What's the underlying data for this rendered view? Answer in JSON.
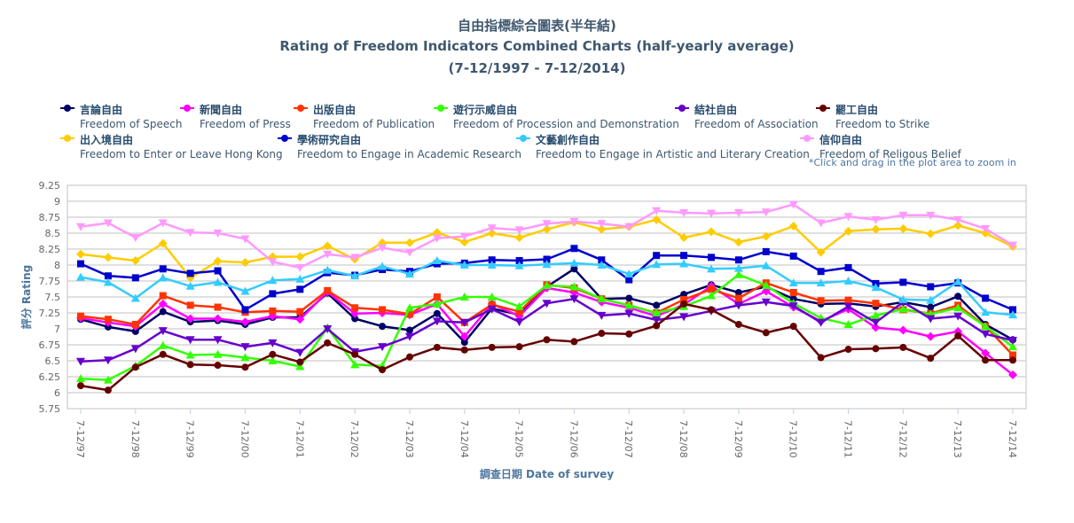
{
  "title_zh": "自由指標綜合圖表(半年結)",
  "title_en": "Rating of Freedom Indicators Combined Charts (half-yearly average)",
  "title_range": "(7-12/1997 - 7-12/2014)",
  "zoom_hint": "*Click and drag in the plot area to zoom in",
  "chart_data": {
    "type": "line",
    "title": "Rating of Freedom Indicators Combined Charts (half-yearly average)",
    "xlabel": "調查日期 Date of survey",
    "ylabel": "評分 Rating",
    "ylim": [
      5.75,
      9.25
    ],
    "yticks": [
      5.75,
      6,
      6.25,
      6.5,
      6.75,
      7,
      7.25,
      7.5,
      7.75,
      8,
      8.25,
      8.5,
      8.75,
      9,
      9.25
    ],
    "ytick_labels": [
      "5.75",
      "6",
      "6.25",
      "6.5",
      "6.75",
      "7",
      "7.25",
      "7.5",
      "7.75",
      "8",
      "8.25",
      "8.5",
      "8.75",
      "9",
      "9.25"
    ],
    "x_ticks": [
      "7-12/97",
      "7-12/98",
      "7-12/99",
      "7-12/00",
      "7-12/01",
      "7-12/02",
      "7-12/03",
      "7-12/04",
      "7-12/05",
      "7-12/06",
      "7-12/07",
      "7-12/08",
      "7-12/09",
      "7-12/10",
      "7-12/11",
      "7-12/12",
      "7-12/13",
      "7-12/14"
    ],
    "grid": true,
    "legend_position": "top",
    "series": [
      {
        "name_zh": "言論自由",
        "name": "Freedom of Speech",
        "color": "#000066",
        "marker": "circle",
        "values": [
          7.15,
          7.03,
          6.96,
          7.27,
          7.11,
          7.13,
          7.07,
          7.18,
          7.18,
          7.56,
          7.16,
          7.04,
          6.98,
          7.24,
          6.79,
          7.32,
          7.22,
          7.66,
          7.94,
          7.47,
          7.48,
          7.37,
          7.54,
          7.69,
          7.57,
          7.66,
          7.47,
          7.39,
          7.4,
          7.35,
          7.42,
          7.34,
          7.51,
          7.07,
          6.83
        ]
      },
      {
        "name_zh": "新聞自由",
        "name": "Freedom of Press",
        "color": "#ff00ff",
        "marker": "diamond",
        "values": [
          7.17,
          7.1,
          7.04,
          7.39,
          7.16,
          7.16,
          7.11,
          7.2,
          7.15,
          7.58,
          7.24,
          7.25,
          7.22,
          7.39,
          6.88,
          7.39,
          7.2,
          7.64,
          7.57,
          7.42,
          7.33,
          7.2,
          7.38,
          7.67,
          7.39,
          7.59,
          7.34,
          7.12,
          7.31,
          7.02,
          6.98,
          6.88,
          6.96,
          6.62,
          6.28
        ]
      },
      {
        "name_zh": "出版自由",
        "name": "Freedom of Publication",
        "color": "#ff3300",
        "marker": "square",
        "values": [
          7.2,
          7.15,
          7.07,
          7.52,
          7.37,
          7.34,
          7.26,
          7.28,
          7.27,
          7.6,
          7.33,
          7.3,
          7.23,
          7.5,
          7.1,
          7.38,
          7.27,
          7.69,
          7.64,
          7.47,
          7.37,
          7.25,
          7.46,
          7.62,
          7.48,
          7.72,
          7.57,
          7.44,
          7.45,
          7.4,
          7.3,
          7.24,
          7.37,
          7.04,
          6.59
        ]
      },
      {
        "name_zh": "遊行示威自由",
        "name": "Freedom of Procession and Demonstration",
        "color": "#33ff00",
        "marker": "triangle",
        "values": [
          6.22,
          6.2,
          6.42,
          6.74,
          6.59,
          6.6,
          6.55,
          6.5,
          6.41,
          7.02,
          6.44,
          6.42,
          7.33,
          7.39,
          7.5,
          7.5,
          7.35,
          7.68,
          7.66,
          7.47,
          7.37,
          7.25,
          7.35,
          7.52,
          7.85,
          7.68,
          7.4,
          7.17,
          7.07,
          7.21,
          7.31,
          7.23,
          7.33,
          7.04,
          6.72
        ]
      },
      {
        "name_zh": "結社自由",
        "name": "Freedom of Association",
        "color": "#6600cc",
        "marker": "triangle-down",
        "values": [
          6.49,
          6.51,
          6.69,
          6.97,
          6.83,
          6.83,
          6.72,
          6.78,
          6.63,
          7.0,
          6.64,
          6.72,
          6.88,
          7.12,
          7.1,
          7.31,
          7.11,
          7.4,
          7.47,
          7.21,
          7.24,
          7.14,
          7.19,
          7.28,
          7.37,
          7.42,
          7.36,
          7.1,
          7.35,
          7.1,
          7.42,
          7.16,
          7.2,
          6.92,
          6.82
        ]
      },
      {
        "name_zh": "罷工自由",
        "name": "Freedom to Strike",
        "color": "#660000",
        "marker": "circle",
        "values": [
          6.11,
          6.04,
          6.4,
          6.6,
          6.44,
          6.43,
          6.4,
          6.6,
          6.48,
          6.78,
          6.6,
          6.36,
          6.56,
          6.71,
          6.67,
          6.71,
          6.72,
          6.83,
          6.8,
          6.93,
          6.92,
          7.05,
          7.39,
          7.3,
          7.07,
          6.94,
          7.04,
          6.55,
          6.68,
          6.69,
          6.71,
          6.54,
          6.89,
          6.51,
          6.51
        ]
      },
      {
        "name_zh": "出入境自由",
        "name": "Freedom to Enter or Leave Hong Kong",
        "color": "#ffcc00",
        "marker": "diamond",
        "values": [
          8.17,
          8.12,
          8.07,
          8.34,
          7.8,
          8.06,
          8.04,
          8.13,
          8.13,
          8.3,
          8.09,
          8.35,
          8.35,
          8.51,
          8.36,
          8.5,
          8.43,
          8.56,
          8.67,
          8.56,
          8.6,
          8.71,
          8.43,
          8.52,
          8.36,
          8.45,
          8.61,
          8.2,
          8.53,
          8.56,
          8.57,
          8.49,
          8.62,
          8.5,
          8.29
        ]
      },
      {
        "name_zh": "學術研究自由",
        "name": "Freedom to Engage in Academic Research",
        "color": "#0000cc",
        "marker": "square",
        "values": [
          8.02,
          7.83,
          7.8,
          7.94,
          7.87,
          7.91,
          7.3,
          7.55,
          7.62,
          7.88,
          7.84,
          7.93,
          7.9,
          8.02,
          8.03,
          8.08,
          8.07,
          8.09,
          8.26,
          8.08,
          7.77,
          8.15,
          8.15,
          8.12,
          8.08,
          8.21,
          8.14,
          7.9,
          7.96,
          7.71,
          7.73,
          7.66,
          7.72,
          7.48,
          7.3
        ]
      },
      {
        "name_zh": "文藝創作自由",
        "name": "Freedom to Engage in Artistic and Literary Creation",
        "color": "#33ccff",
        "marker": "triangle",
        "values": [
          7.81,
          7.73,
          7.48,
          7.8,
          7.67,
          7.73,
          7.59,
          7.76,
          7.78,
          7.92,
          7.83,
          7.98,
          7.86,
          8.07,
          8.0,
          8.0,
          7.99,
          8.01,
          8.03,
          8.0,
          7.86,
          8.01,
          8.02,
          7.94,
          7.95,
          7.99,
          7.72,
          7.72,
          7.75,
          7.65,
          7.46,
          7.45,
          7.74,
          7.26,
          7.22
        ]
      },
      {
        "name_zh": "信仰自由",
        "name": "Freedom of Religous Belief",
        "color": "#ff99ff",
        "marker": "triangle-down",
        "values": [
          8.6,
          8.66,
          8.43,
          8.66,
          8.51,
          8.5,
          8.41,
          8.05,
          7.96,
          8.17,
          8.12,
          8.27,
          8.2,
          8.42,
          8.45,
          8.58,
          8.55,
          8.65,
          8.68,
          8.65,
          8.6,
          8.85,
          8.82,
          8.81,
          8.82,
          8.83,
          8.95,
          8.66,
          8.76,
          8.71,
          8.78,
          8.78,
          8.71,
          8.57,
          8.31
        ]
      }
    ]
  }
}
